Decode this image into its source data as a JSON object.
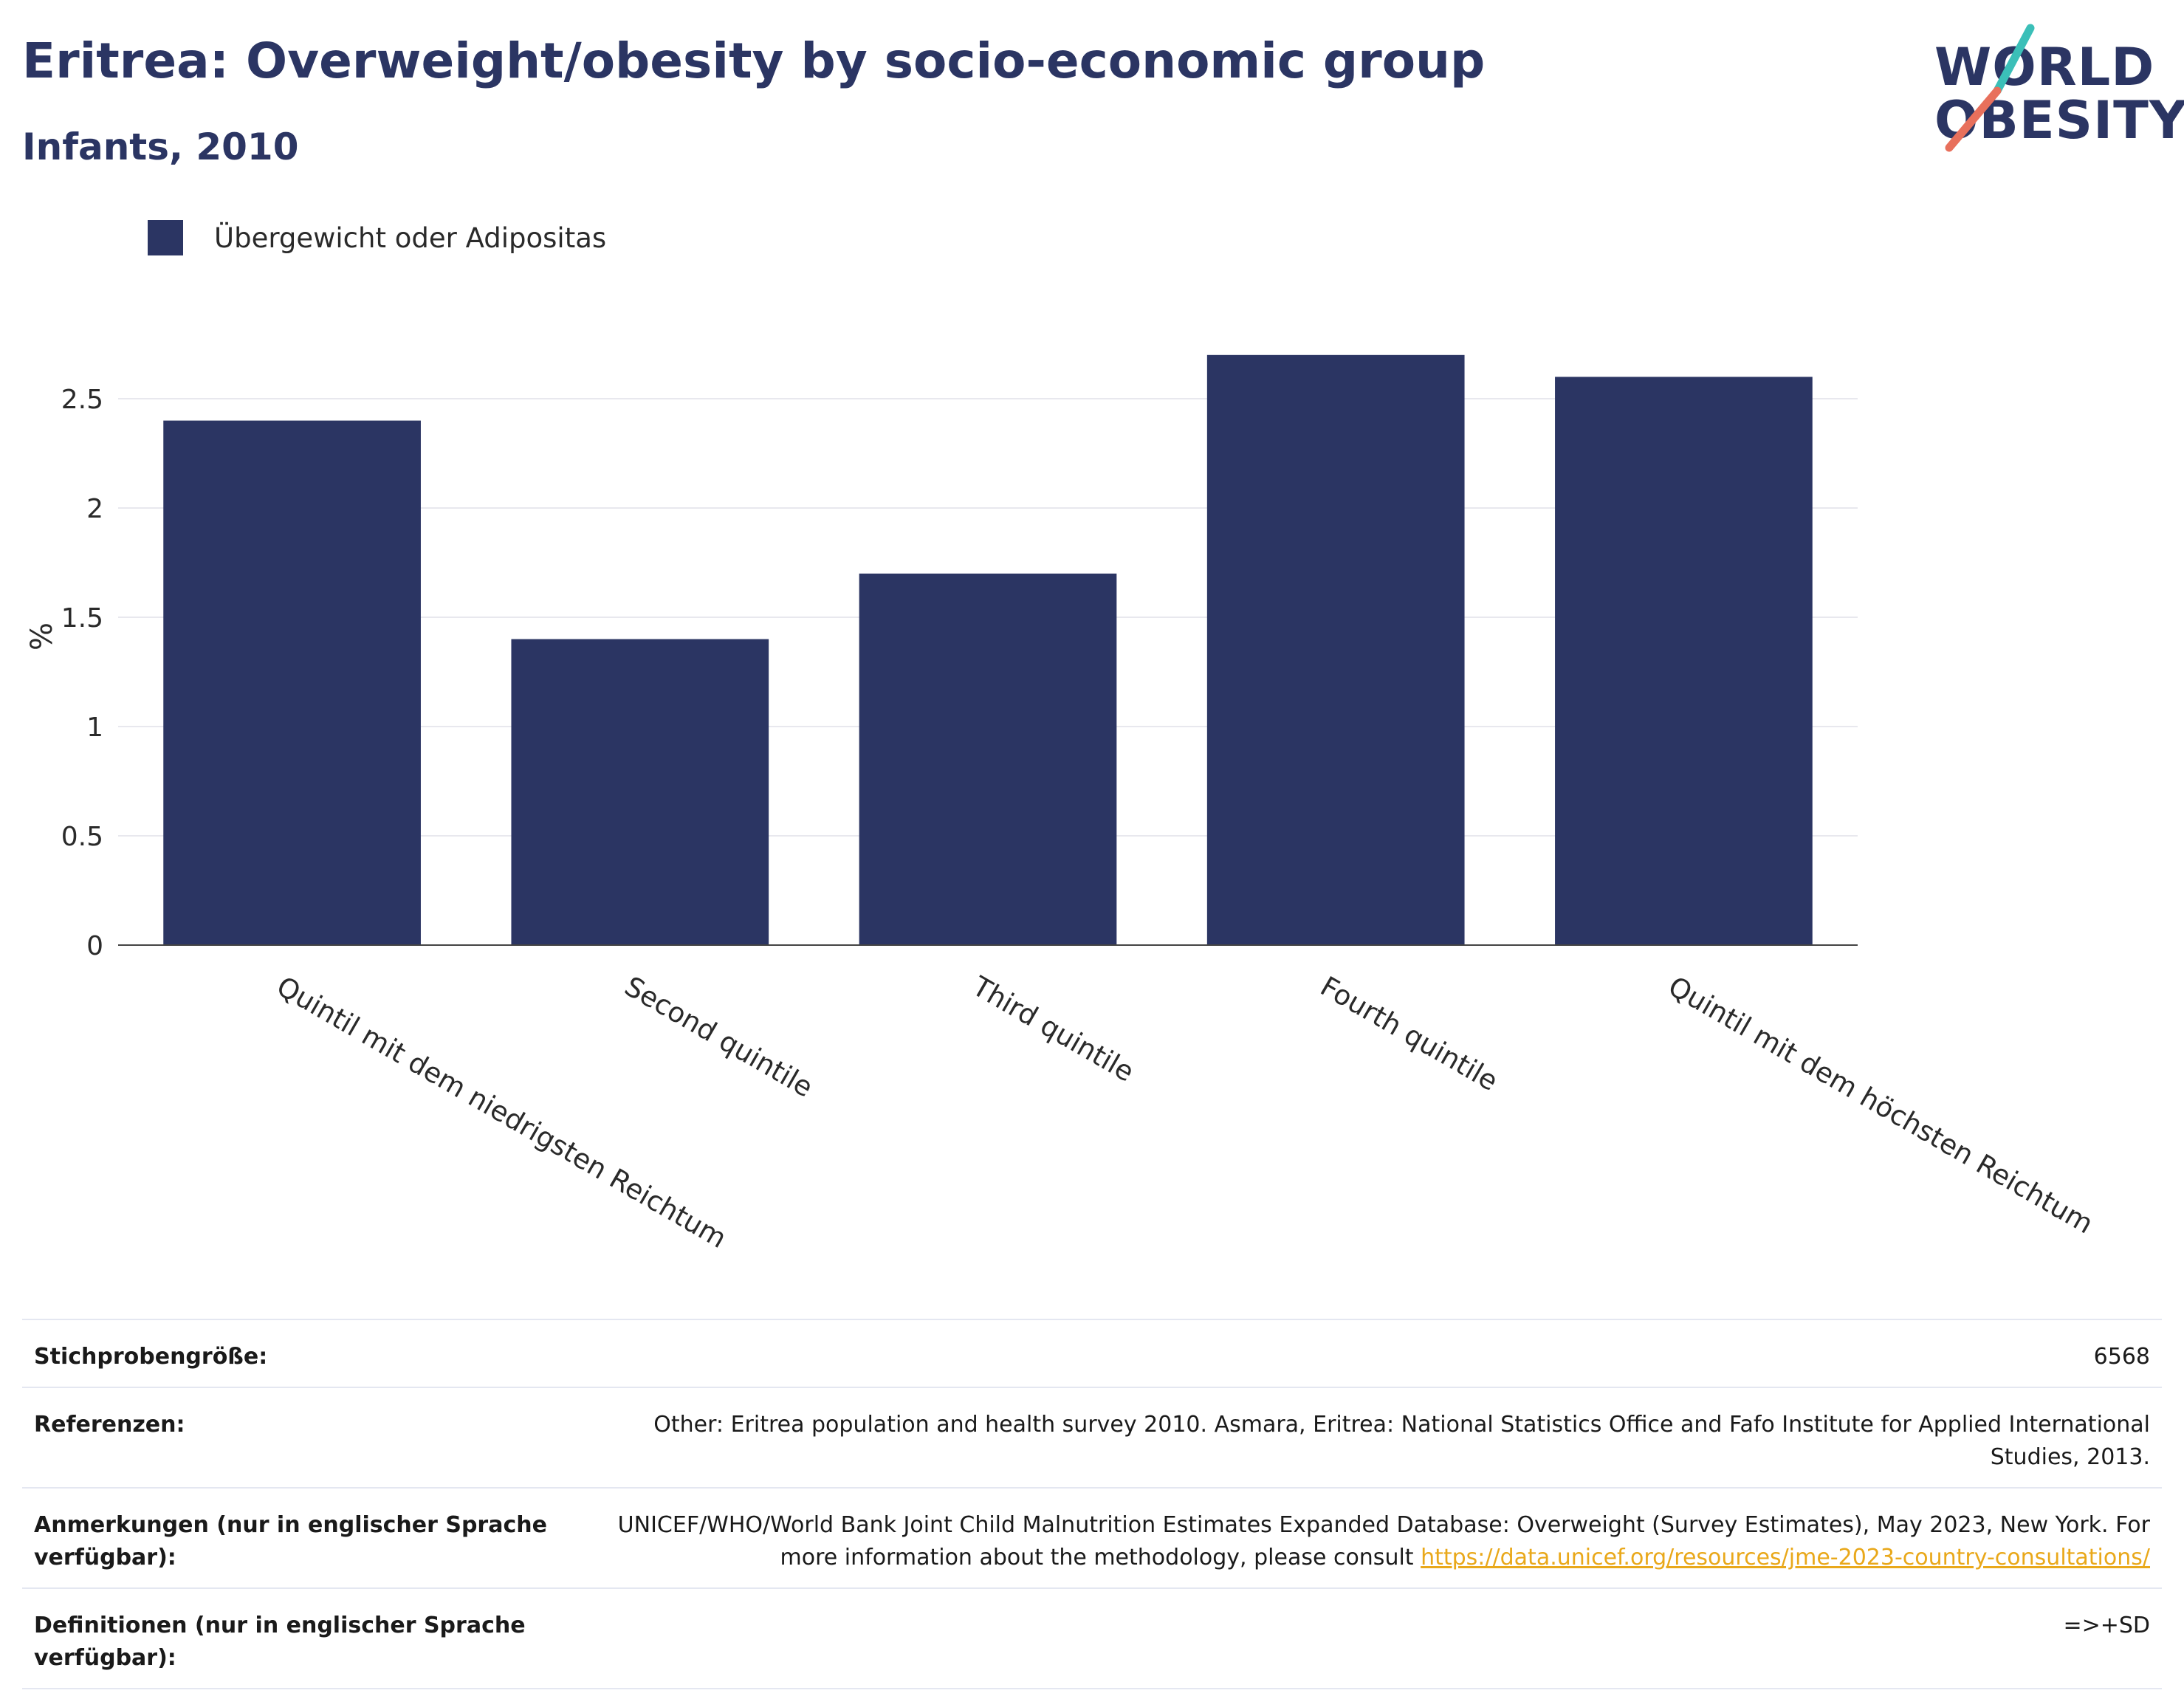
{
  "header": {
    "title": "Eritrea: Overweight/obesity by socio-economic group",
    "subtitle": "Infants, 2010"
  },
  "logo": {
    "line1": "WORLD",
    "line2": "OBESITY",
    "colors": {
      "text": "#2b3563",
      "slash_top": "#3bbfb8",
      "slash_bottom": "#e8705c"
    }
  },
  "chart_data": {
    "type": "bar",
    "categories": [
      "Quintil mit dem niedrigsten Reichtum",
      "Second quintile",
      "Third quintile",
      "Fourth quintile",
      "Quintil mit dem höchsten Reichtum"
    ],
    "series": [
      {
        "name": "Übergewicht oder Adipositas",
        "values": [
          2.4,
          1.4,
          1.7,
          2.7,
          2.6
        ],
        "color": "#2b3563"
      }
    ],
    "ylabel": "%",
    "ylim": [
      0,
      2.9
    ],
    "yticks": [
      0,
      0.5,
      1,
      1.5,
      2,
      2.5
    ],
    "ytick_labels": [
      "0",
      "0.5",
      "1",
      "1.5",
      "2",
      "2.5"
    ],
    "grid": true,
    "legend": "top-left"
  },
  "info": {
    "rows": [
      {
        "label": "Stichprobengröße:",
        "value": "6568"
      },
      {
        "label": "Referenzen:",
        "value": "Other: Eritrea population and health survey 2010. Asmara, Eritrea: National Statistics Office and Fafo Institute for Applied International Studies, 2013."
      },
      {
        "label": "Anmerkungen (nur in englischer Sprache verfügbar):",
        "value": "UNICEF/WHO/World Bank Joint Child Malnutrition Estimates Expanded Database: Overweight (Survey Estimates), May 2023, New York. For more information about the methodology, please consult ",
        "link": "https://data.unicef.org/resources/jme-2023-country-consultations/"
      },
      {
        "label": "Definitionen (nur in englischer Sprache verfügbar):",
        "value": "=>+SD"
      }
    ]
  }
}
